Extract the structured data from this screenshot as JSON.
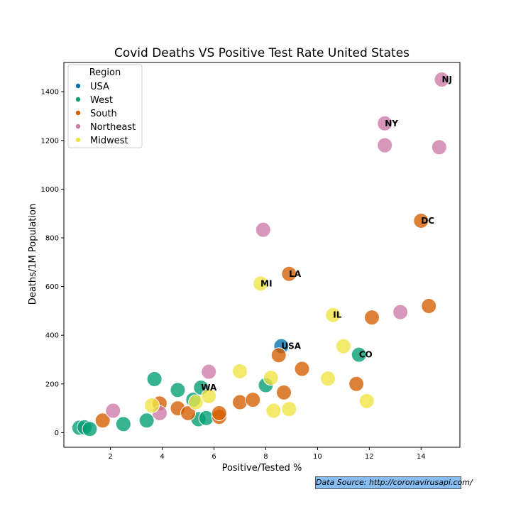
{
  "chart_data": {
    "type": "scatter",
    "title": "Covid Deaths VS Positive Test Rate United States",
    "xlabel": "Positive/Tested %",
    "ylabel": "Deaths/1M Population",
    "xlim": [
      0.2,
      15.5
    ],
    "ylim": [
      -60,
      1520
    ],
    "xticks": [
      "2",
      "4",
      "6",
      "8",
      "10",
      "12",
      "14"
    ],
    "yticks": [
      "0",
      "200",
      "400",
      "600",
      "800",
      "1000",
      "1200",
      "1400"
    ],
    "grid": false,
    "legend": {
      "title": "Region",
      "placement": "top-left",
      "entries": [
        "USA",
        "West",
        "South",
        "Northeast",
        "Midwest"
      ]
    },
    "series": [
      {
        "name": "USA",
        "color": "#0072b2",
        "points": [
          {
            "x": 8.6,
            "y": 355,
            "label": "USA"
          }
        ]
      },
      {
        "name": "West",
        "color": "#009e73",
        "points": [
          {
            "x": 0.8,
            "y": 20
          },
          {
            "x": 1.0,
            "y": 22
          },
          {
            "x": 1.2,
            "y": 15
          },
          {
            "x": 2.5,
            "y": 35
          },
          {
            "x": 3.4,
            "y": 50
          },
          {
            "x": 3.7,
            "y": 220
          },
          {
            "x": 4.6,
            "y": 175
          },
          {
            "x": 5.2,
            "y": 135
          },
          {
            "x": 5.4,
            "y": 55
          },
          {
            "x": 5.5,
            "y": 185,
            "label": "WA"
          },
          {
            "x": 5.7,
            "y": 60
          },
          {
            "x": 8.0,
            "y": 195
          },
          {
            "x": 11.6,
            "y": 320,
            "label": "CO"
          }
        ]
      },
      {
        "name": "South",
        "color": "#d55e00",
        "points": [
          {
            "x": 1.7,
            "y": 50
          },
          {
            "x": 3.9,
            "y": 120
          },
          {
            "x": 4.6,
            "y": 100
          },
          {
            "x": 5.0,
            "y": 80
          },
          {
            "x": 6.2,
            "y": 65
          },
          {
            "x": 6.2,
            "y": 80
          },
          {
            "x": 7.0,
            "y": 125
          },
          {
            "x": 7.5,
            "y": 135
          },
          {
            "x": 8.5,
            "y": 318
          },
          {
            "x": 8.7,
            "y": 165
          },
          {
            "x": 8.9,
            "y": 652,
            "label": "LA"
          },
          {
            "x": 9.4,
            "y": 262
          },
          {
            "x": 11.5,
            "y": 200
          },
          {
            "x": 12.1,
            "y": 473
          },
          {
            "x": 14.0,
            "y": 870,
            "label": "DC"
          },
          {
            "x": 14.3,
            "y": 520
          }
        ]
      },
      {
        "name": "Northeast",
        "color": "#cc79a7",
        "points": [
          {
            "x": 2.1,
            "y": 90
          },
          {
            "x": 3.9,
            "y": 80
          },
          {
            "x": 5.8,
            "y": 250
          },
          {
            "x": 7.9,
            "y": 833
          },
          {
            "x": 12.6,
            "y": 1270,
            "label": "NY"
          },
          {
            "x": 12.6,
            "y": 1180
          },
          {
            "x": 13.2,
            "y": 495
          },
          {
            "x": 14.7,
            "y": 1172
          },
          {
            "x": 14.8,
            "y": 1450,
            "label": "NJ"
          }
        ]
      },
      {
        "name": "Midwest",
        "color": "#f0e442",
        "points": [
          {
            "x": 3.6,
            "y": 112
          },
          {
            "x": 5.3,
            "y": 125
          },
          {
            "x": 5.8,
            "y": 150
          },
          {
            "x": 7.0,
            "y": 252
          },
          {
            "x": 7.8,
            "y": 612,
            "label": "MI"
          },
          {
            "x": 8.2,
            "y": 225
          },
          {
            "x": 8.3,
            "y": 90
          },
          {
            "x": 8.9,
            "y": 97
          },
          {
            "x": 10.4,
            "y": 222
          },
          {
            "x": 10.6,
            "y": 483,
            "label": "IL"
          },
          {
            "x": 11.0,
            "y": 355
          },
          {
            "x": 11.9,
            "y": 130
          }
        ]
      }
    ]
  },
  "source_note": "Data Source: http://coronavirusapi.com/"
}
